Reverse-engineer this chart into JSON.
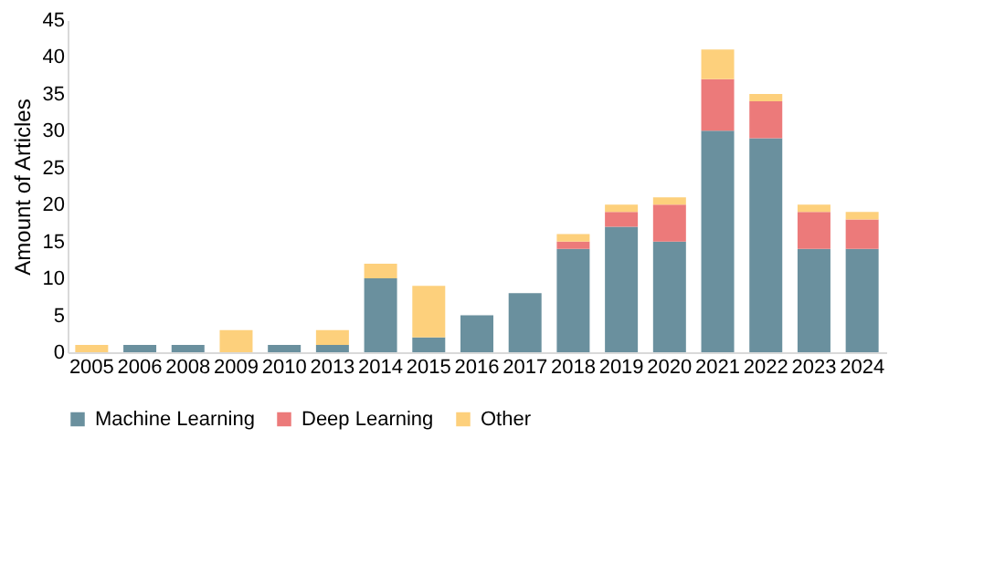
{
  "chart_data": {
    "type": "bar",
    "stacked": true,
    "ylabel": "Amount of Articles",
    "categories": [
      "2005",
      "2006",
      "2008",
      "2009",
      "2010",
      "2013",
      "2014",
      "2015",
      "2016",
      "2017",
      "2018",
      "2019",
      "2020",
      "2021",
      "2022",
      "2023",
      "2024"
    ],
    "series": [
      {
        "name": "Machine Learning",
        "color": "#6a909e",
        "values": [
          0,
          1,
          1,
          0,
          1,
          1,
          10,
          2,
          5,
          8,
          14,
          17,
          15,
          30,
          29,
          14,
          14
        ]
      },
      {
        "name": "Deep Learning",
        "color": "#ec7a7a",
        "values": [
          0,
          0,
          0,
          0,
          0,
          0,
          0,
          0,
          0,
          0,
          1,
          2,
          5,
          7,
          5,
          5,
          4
        ]
      },
      {
        "name": "Other",
        "color": "#fdd07c",
        "values": [
          1,
          0,
          0,
          3,
          0,
          2,
          2,
          7,
          0,
          0,
          1,
          1,
          1,
          4,
          1,
          1,
          1
        ]
      }
    ],
    "ylim": [
      0,
      45
    ],
    "yticks": [
      0,
      5,
      10,
      15,
      20,
      25,
      30,
      35,
      40,
      45
    ],
    "grid": false,
    "legend": "bottom"
  }
}
